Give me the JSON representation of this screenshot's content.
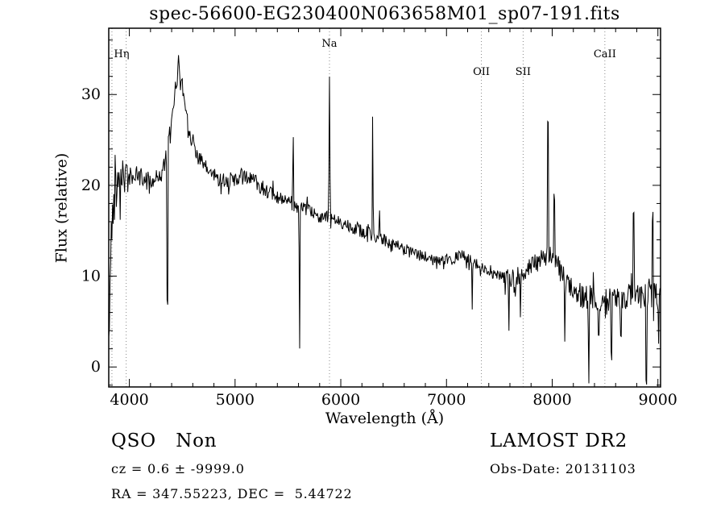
{
  "title": "spec-56600-EG230400N063658M01_sp07-191.fits",
  "footer": {
    "class_label": "QSO   Non",
    "cz_line": "cz = 0.6 ± -9999.0",
    "radec_line": "RA = 347.55223, DEC =  5.44722",
    "survey": "LAMOST DR2",
    "obs_date": "Obs-Date: 20131103"
  },
  "chart_data": {
    "type": "line",
    "title": "spec-56600-EG230400N063658M01_sp07-191.fits",
    "xlabel": "Wavelength (Å)",
    "ylabel": "Flux (relative)",
    "xlim": [
      3805,
      9025
    ],
    "ylim": [
      -2.2,
      37.3
    ],
    "xticks": [
      4000,
      5000,
      6000,
      7000,
      8000,
      9000
    ],
    "yticks": [
      0,
      10,
      20,
      30
    ],
    "x_minor_step": 200,
    "y_minor_step": 2,
    "grid": false,
    "line_color": "#000000",
    "marker_line_color": "#888888",
    "spectral_lines": [
      {
        "label": "Hη",
        "wavelength": 3835,
        "label_row": 1,
        "label_dx": 12
      },
      {
        "label": "",
        "wavelength": 3970,
        "label_row": 1,
        "label_dx": 0
      },
      {
        "label": "Na",
        "wavelength": 5893,
        "label_row": 0,
        "label_dx": 0
      },
      {
        "label": "OII",
        "wavelength": 7330,
        "label_row": 2,
        "label_dx": 0
      },
      {
        "label": "SII",
        "wavelength": 7725,
        "label_row": 2,
        "label_dx": 0
      },
      {
        "label": "CaII",
        "wavelength": 8498,
        "label_row": 1,
        "label_dx": 0
      }
    ],
    "continuum": [
      [
        3805,
        7.5
      ],
      [
        3820,
        12
      ],
      [
        3840,
        16.5
      ],
      [
        3865,
        19.5
      ],
      [
        3895,
        21.5
      ],
      [
        3950,
        21.5
      ],
      [
        4000,
        21
      ],
      [
        4080,
        21
      ],
      [
        4160,
        20.6
      ],
      [
        4240,
        20.6
      ],
      [
        4310,
        21.5
      ],
      [
        4360,
        23.5
      ],
      [
        4410,
        27.5
      ],
      [
        4445,
        31.5
      ],
      [
        4468,
        33.5
      ],
      [
        4495,
        31.5
      ],
      [
        4540,
        28
      ],
      [
        4590,
        25.2
      ],
      [
        4650,
        23.2
      ],
      [
        4710,
        22
      ],
      [
        4780,
        21.3
      ],
      [
        4850,
        20.7
      ],
      [
        4930,
        20.5
      ],
      [
        5010,
        20.6
      ],
      [
        5080,
        21
      ],
      [
        5150,
        20.8
      ],
      [
        5220,
        20.2
      ],
      [
        5300,
        19.4
      ],
      [
        5380,
        18.7
      ],
      [
        5460,
        18.2
      ],
      [
        5540,
        17.9
      ],
      [
        5620,
        17.5
      ],
      [
        5700,
        17.1
      ],
      [
        5780,
        16.7
      ],
      [
        5860,
        16.5
      ],
      [
        5940,
        16.2
      ],
      [
        6020,
        15.9
      ],
      [
        6120,
        15.4
      ],
      [
        6220,
        14.9
      ],
      [
        6320,
        14.4
      ],
      [
        6420,
        13.9
      ],
      [
        6520,
        13.4
      ],
      [
        6620,
        12.9
      ],
      [
        6720,
        12.4
      ],
      [
        6820,
        12
      ],
      [
        6920,
        11.7
      ],
      [
        7000,
        11.6
      ],
      [
        7060,
        11.9
      ],
      [
        7130,
        12.3
      ],
      [
        7190,
        12.1
      ],
      [
        7260,
        11.4
      ],
      [
        7330,
        11
      ],
      [
        7400,
        10.5
      ],
      [
        7470,
        10.1
      ],
      [
        7540,
        9.9
      ],
      [
        7610,
        9.7
      ],
      [
        7680,
        10
      ],
      [
        7750,
        10.6
      ],
      [
        7820,
        11.2
      ],
      [
        7890,
        11.8
      ],
      [
        7950,
        12.1
      ],
      [
        8010,
        12.2
      ],
      [
        8060,
        11.2
      ],
      [
        8110,
        9.9
      ],
      [
        8170,
        8.8
      ],
      [
        8230,
        8.2
      ],
      [
        8300,
        7.8
      ],
      [
        8380,
        7.6
      ],
      [
        8470,
        7.4
      ],
      [
        8570,
        7.4
      ],
      [
        8670,
        7.6
      ],
      [
        8770,
        7.9
      ],
      [
        8860,
        7.7
      ],
      [
        8940,
        7.8
      ],
      [
        9025,
        8
      ]
    ],
    "spikes": [
      {
        "wavelength": 3808,
        "peak": 3,
        "width": 5
      },
      {
        "wavelength": 4360,
        "peak": 7,
        "width": 7
      },
      {
        "wavelength": 5550,
        "peak": 25.5,
        "width": 7
      },
      {
        "wavelength": 5610,
        "peak": 2,
        "width": 7
      },
      {
        "wavelength": 5893,
        "peak": 32,
        "width": 8
      },
      {
        "wavelength": 6302,
        "peak": 27.5,
        "width": 7
      },
      {
        "wavelength": 6365,
        "peak": 17.5,
        "width": 6
      },
      {
        "wavelength": 7245,
        "peak": 6.5,
        "width": 5
      },
      {
        "wavelength": 7590,
        "peak": 4,
        "width": 7
      },
      {
        "wavelength": 7700,
        "peak": 6,
        "width": 5
      },
      {
        "wavelength": 7960,
        "peak": 27,
        "width": 7
      },
      {
        "wavelength": 8020,
        "peak": 19,
        "width": 5
      },
      {
        "wavelength": 8120,
        "peak": 3,
        "width": 6
      },
      {
        "wavelength": 8345,
        "peak": -1.8,
        "width": 7
      },
      {
        "wavelength": 8440,
        "peak": 3,
        "width": 6
      },
      {
        "wavelength": 8560,
        "peak": 1.5,
        "width": 6
      },
      {
        "wavelength": 8650,
        "peak": 4,
        "width": 5
      },
      {
        "wavelength": 8770,
        "peak": 17,
        "width": 6
      },
      {
        "wavelength": 8890,
        "peak": -1.8,
        "width": 7
      },
      {
        "wavelength": 8950,
        "peak": 16.5,
        "width": 6
      },
      {
        "wavelength": 9005,
        "peak": 2.5,
        "width": 6
      }
    ],
    "noise": [
      {
        "from": 3805,
        "to": 3960,
        "amp": 2.6
      },
      {
        "from": 3960,
        "to": 4300,
        "amp": 1.1
      },
      {
        "from": 4300,
        "to": 4600,
        "amp": 1.2
      },
      {
        "from": 4600,
        "to": 5300,
        "amp": 0.9
      },
      {
        "from": 5300,
        "to": 6500,
        "amp": 0.75
      },
      {
        "from": 6500,
        "to": 7550,
        "amp": 0.65
      },
      {
        "from": 7550,
        "to": 8250,
        "amp": 1.1
      },
      {
        "from": 8250,
        "to": 9026,
        "amp": 1.4
      }
    ],
    "noise_seed": 42,
    "sample_step": 6
  }
}
